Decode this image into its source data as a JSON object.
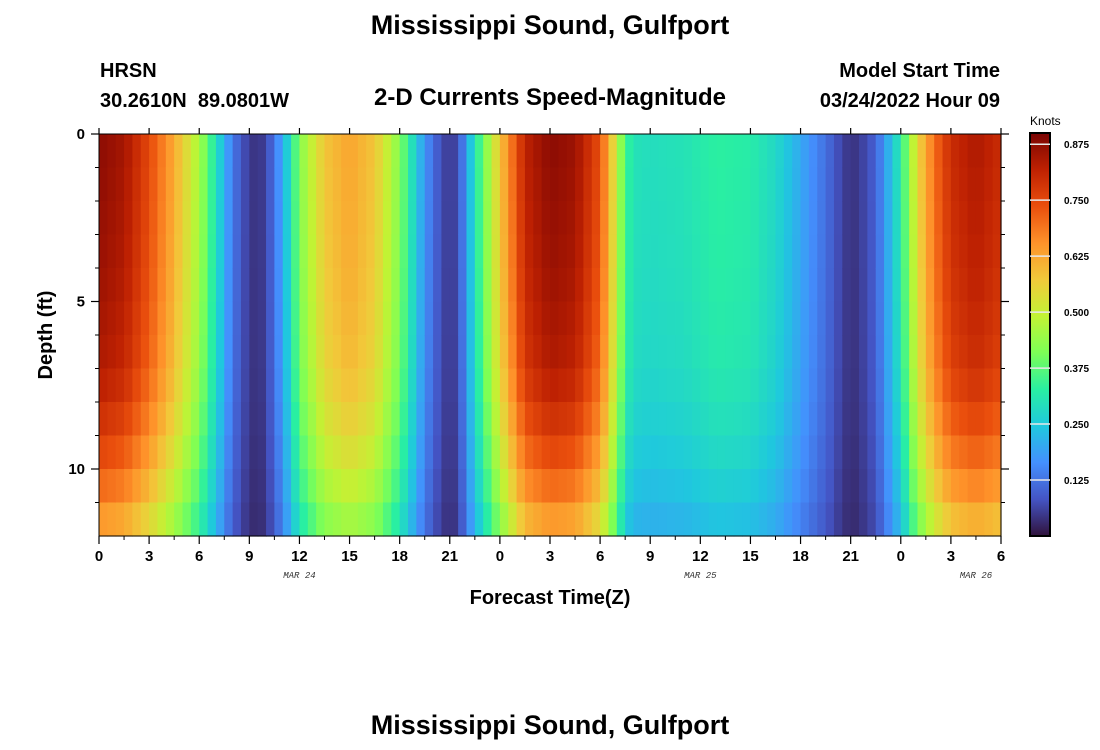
{
  "header": {
    "title": "Mississippi Sound, Gulfport",
    "station_id": "HRSN",
    "coordinates": "30.2610N  89.0801W",
    "subtitle": "2-D Currents Speed-Magnitude",
    "model_label": "Model Start Time",
    "model_time": "03/24/2022 Hour 09",
    "repeated_title": "Mississippi Sound, Gulfport"
  },
  "chart_data": {
    "type": "heatmap",
    "title": "2-D Currents Speed-Magnitude",
    "xlabel": "Forecast Time(Z)",
    "ylabel": "Depth (ft)",
    "x_tick_labels": [
      "0",
      "3",
      "6",
      "9",
      "12",
      "15",
      "18",
      "21",
      "0",
      "3",
      "6",
      "9",
      "12",
      "15",
      "18",
      "21",
      "0",
      "3",
      "6"
    ],
    "x_date_labels": [
      "MAR 24",
      "MAR 25",
      "MAR 26"
    ],
    "x_range_hours": [
      0,
      54
    ],
    "y_tick_labels": [
      "0",
      "5",
      "10"
    ],
    "y_range_ft": [
      0,
      12
    ],
    "colorbar": {
      "unit": "Knots",
      "ticks": [
        "0.875",
        "0.750",
        "0.625",
        "0.500",
        "0.375",
        "0.250",
        "0.125"
      ],
      "range": [
        0.0,
        0.9
      ],
      "colormap": [
        "#30123b",
        "#4454c4",
        "#4490fe",
        "#1fc8de",
        "#29efa2",
        "#7dff56",
        "#c1f334",
        "#f1ca3a",
        "#fe922a",
        "#ea4f0d",
        "#be2102",
        "#7a0403"
      ]
    },
    "surface_speed_profile": {
      "hours": [
        0,
        1.5,
        3,
        4.5,
        6,
        7,
        8,
        9,
        9.5,
        10,
        11,
        12,
        13.5,
        15,
        16.5,
        18,
        19.5,
        20.5,
        21,
        21.5,
        22.5,
        24,
        25.5,
        27,
        28.5,
        30,
        31,
        31.5,
        32,
        33,
        35,
        37,
        39,
        40.5,
        42,
        43.5,
        44.5,
        45,
        45.5,
        46.5,
        48,
        49,
        50,
        51,
        52.5,
        54
      ],
      "speed_knots": [
        0.88,
        0.85,
        0.75,
        0.62,
        0.46,
        0.3,
        0.13,
        0.05,
        0.04,
        0.06,
        0.2,
        0.42,
        0.58,
        0.63,
        0.58,
        0.42,
        0.17,
        0.07,
        0.05,
        0.07,
        0.3,
        0.58,
        0.82,
        0.88,
        0.86,
        0.74,
        0.5,
        0.35,
        0.3,
        0.29,
        0.3,
        0.33,
        0.32,
        0.28,
        0.2,
        0.12,
        0.06,
        0.04,
        0.05,
        0.1,
        0.32,
        0.55,
        0.7,
        0.8,
        0.84,
        0.8
      ]
    },
    "depth_attenuation": {
      "depth_ft": [
        0,
        4,
        7,
        9,
        10.5,
        12
      ],
      "factor": [
        1.0,
        0.98,
        0.95,
        0.88,
        0.8,
        0.7
      ]
    }
  }
}
